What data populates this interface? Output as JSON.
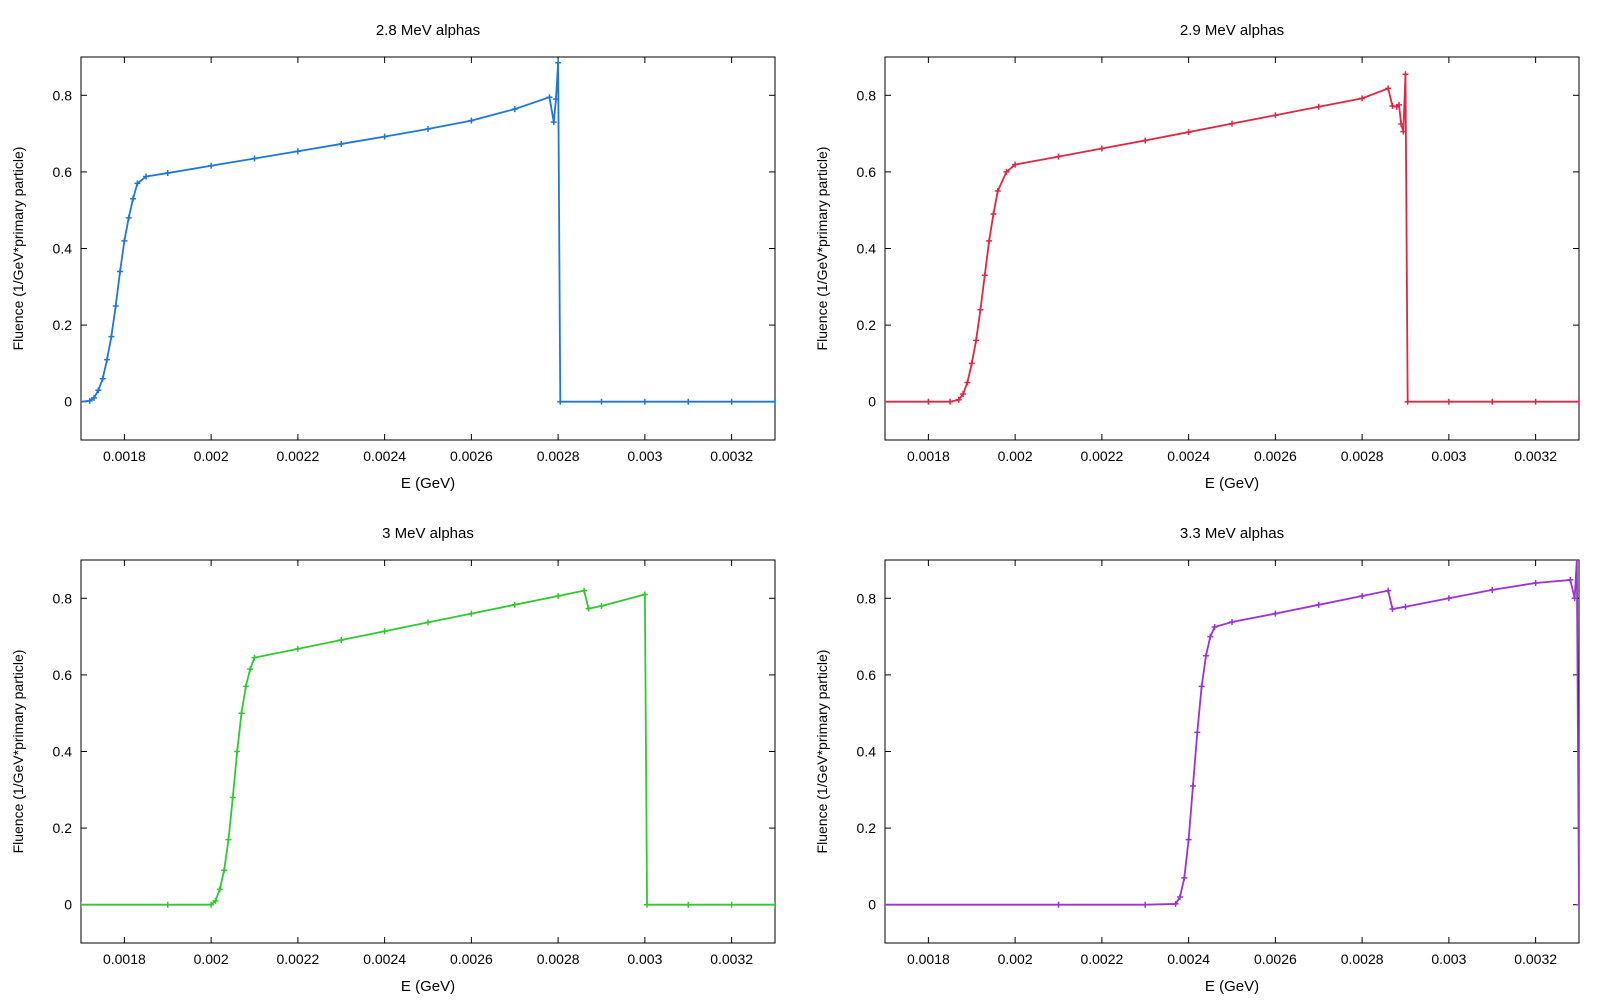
{
  "chart_data": [
    {
      "type": "line",
      "title": "2.8 MeV alphas",
      "xlabel": "E (GeV)",
      "ylabel": "Fluence (1/GeV*primary particle)",
      "color": "#1f77d4",
      "xlim": [
        0.0017,
        0.0033
      ],
      "ylim": [
        -0.1,
        0.9
      ],
      "x_ticks": [
        "0.0018",
        "0.002",
        "0.0022",
        "0.0024",
        "0.0026",
        "0.0028",
        "0.003",
        "0.0032"
      ],
      "y_ticks": [
        "0",
        "0.2",
        "0.4",
        "0.6",
        "0.8"
      ],
      "grid": false,
      "x": [
        0.0017,
        0.00172,
        0.00173,
        0.00174,
        0.00175,
        0.00176,
        0.00177,
        0.00178,
        0.00179,
        0.0018,
        0.00181,
        0.00182,
        0.00183,
        0.00185,
        0.0019,
        0.002,
        0.0021,
        0.0022,
        0.0023,
        0.0024,
        0.0025,
        0.0026,
        0.0027,
        0.00278,
        0.00279,
        0.002795,
        0.0028,
        0.002805,
        0.0029,
        0.003,
        0.0031,
        0.0032,
        0.0033
      ],
      "values": [
        0.0,
        0.002,
        0.01,
        0.03,
        0.06,
        0.11,
        0.17,
        0.25,
        0.34,
        0.42,
        0.48,
        0.53,
        0.57,
        0.588,
        0.597,
        0.616,
        0.635,
        0.654,
        0.673,
        0.692,
        0.712,
        0.734,
        0.764,
        0.795,
        0.73,
        0.79,
        0.885,
        0.0,
        0.0,
        0.0,
        0.0,
        0.0,
        0.0
      ]
    },
    {
      "type": "line",
      "title": "2.9 MeV alphas",
      "xlabel": "E (GeV)",
      "ylabel": "Fluence (1/GeV*primary particle)",
      "color": "#dc2846",
      "xlim": [
        0.0017,
        0.0033
      ],
      "ylim": [
        -0.1,
        0.9
      ],
      "x_ticks": [
        "0.0018",
        "0.002",
        "0.0022",
        "0.0024",
        "0.0026",
        "0.0028",
        "0.003",
        "0.0032"
      ],
      "y_ticks": [
        "0",
        "0.2",
        "0.4",
        "0.6",
        "0.8"
      ],
      "grid": false,
      "x": [
        0.0017,
        0.0018,
        0.00185,
        0.00187,
        0.00188,
        0.00189,
        0.0019,
        0.00191,
        0.00192,
        0.00193,
        0.00194,
        0.00195,
        0.00196,
        0.00198,
        0.002,
        0.0021,
        0.0022,
        0.0023,
        0.0024,
        0.0025,
        0.0026,
        0.0027,
        0.0028,
        0.00286,
        0.00287,
        0.00288,
        0.002885,
        0.00289,
        0.002895,
        0.0029,
        0.002905,
        0.003,
        0.0031,
        0.0032,
        0.0033
      ],
      "values": [
        0.0,
        0.0,
        0.0,
        0.005,
        0.02,
        0.05,
        0.1,
        0.16,
        0.24,
        0.33,
        0.42,
        0.49,
        0.55,
        0.6,
        0.619,
        0.64,
        0.661,
        0.682,
        0.704,
        0.726,
        0.748,
        0.77,
        0.792,
        0.818,
        0.772,
        0.77,
        0.775,
        0.725,
        0.705,
        0.855,
        0.0,
        0.0,
        0.0,
        0.0,
        0.0
      ]
    },
    {
      "type": "line",
      "title": "3 MeV alphas",
      "xlabel": "E (GeV)",
      "ylabel": "Fluence (1/GeV*primary particle)",
      "color": "#32c832",
      "xlim": [
        0.0017,
        0.0033
      ],
      "ylim": [
        -0.1,
        0.9
      ],
      "x_ticks": [
        "0.0018",
        "0.002",
        "0.0022",
        "0.0024",
        "0.0026",
        "0.0028",
        "0.003",
        "0.0032"
      ],
      "y_ticks": [
        "0",
        "0.2",
        "0.4",
        "0.6",
        "0.8"
      ],
      "grid": false,
      "x": [
        0.0017,
        0.0019,
        0.002,
        0.00201,
        0.00202,
        0.00203,
        0.00204,
        0.00205,
        0.00206,
        0.00207,
        0.00208,
        0.00209,
        0.0021,
        0.0022,
        0.0023,
        0.0024,
        0.0025,
        0.0026,
        0.0027,
        0.0028,
        0.00286,
        0.00287,
        0.0029,
        0.003,
        0.003005,
        0.0031,
        0.0032,
        0.0033
      ],
      "values": [
        0.0,
        0.0,
        0.0,
        0.01,
        0.04,
        0.09,
        0.17,
        0.28,
        0.4,
        0.5,
        0.57,
        0.615,
        0.645,
        0.668,
        0.691,
        0.714,
        0.737,
        0.76,
        0.783,
        0.806,
        0.82,
        0.773,
        0.78,
        0.81,
        0.0,
        0.0,
        0.0,
        0.0
      ]
    },
    {
      "type": "line",
      "title": "3.3 MeV alphas",
      "xlabel": "E (GeV)",
      "ylabel": "Fluence (1/GeV*primary particle)",
      "color": "#9b32d2",
      "xlim": [
        0.0017,
        0.0033
      ],
      "ylim": [
        -0.1,
        0.9
      ],
      "x_ticks": [
        "0.0018",
        "0.002",
        "0.0022",
        "0.0024",
        "0.0026",
        "0.0028",
        "0.003",
        "0.0032"
      ],
      "y_ticks": [
        "0",
        "0.2",
        "0.4",
        "0.6",
        "0.8"
      ],
      "grid": false,
      "x": [
        0.0017,
        0.0021,
        0.0023,
        0.00237,
        0.00238,
        0.00239,
        0.0024,
        0.00241,
        0.00242,
        0.00243,
        0.00244,
        0.00245,
        0.00246,
        0.0025,
        0.0026,
        0.0027,
        0.0028,
        0.00286,
        0.00287,
        0.0029,
        0.003,
        0.0031,
        0.0032,
        0.00328,
        0.00329,
        0.003295,
        0.0033
      ],
      "values": [
        0.0,
        0.0,
        0.0,
        0.002,
        0.02,
        0.07,
        0.17,
        0.31,
        0.45,
        0.57,
        0.65,
        0.7,
        0.725,
        0.738,
        0.76,
        0.783,
        0.806,
        0.82,
        0.772,
        0.778,
        0.8,
        0.822,
        0.84,
        0.848,
        0.8,
        0.9,
        0.0
      ]
    }
  ]
}
